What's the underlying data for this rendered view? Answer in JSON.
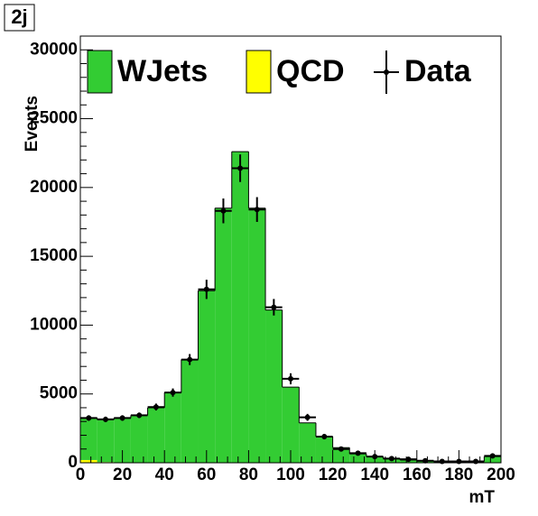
{
  "chart_data": {
    "type": "stacked_histogram",
    "title": "2j",
    "x_label": "mT",
    "y_label": "Events",
    "bins": [
      0,
      8,
      16,
      24,
      32,
      40,
      48,
      56,
      64,
      72,
      80,
      88,
      96,
      104,
      112,
      120,
      128,
      136,
      144,
      152,
      160,
      168,
      176,
      184,
      192,
      200
    ],
    "series": [
      {
        "name": "QCD",
        "color": "#ffff00",
        "values": [
          200,
          50,
          0,
          0,
          0,
          0,
          0,
          0,
          0,
          0,
          0,
          0,
          0,
          0,
          0,
          0,
          0,
          0,
          0,
          0,
          0,
          0,
          0,
          0,
          0
        ]
      },
      {
        "name": "WJets",
        "color": "#33cc33",
        "values": [
          3050,
          3100,
          3250,
          3450,
          4000,
          5100,
          7500,
          12500,
          18500,
          22600,
          18500,
          11100,
          5500,
          2900,
          1900,
          1100,
          650,
          450,
          300,
          200,
          150,
          100,
          100,
          100,
          450
        ]
      }
    ],
    "data": {
      "name": "Data",
      "color": "#000000",
      "values": [
        3250,
        3150,
        3250,
        3450,
        4050,
        5100,
        7500,
        12600,
        18300,
        21400,
        18400,
        11300,
        6100,
        3300,
        1900,
        1000,
        700,
        450,
        300,
        250,
        150,
        100,
        100,
        100,
        500
      ],
      "errors": [
        200,
        200,
        200,
        200,
        250,
        300,
        400,
        700,
        900,
        1000,
        900,
        600,
        400,
        250,
        200,
        150,
        100,
        80,
        60,
        60,
        50,
        40,
        40,
        40,
        80
      ]
    },
    "xlim": [
      0,
      200
    ],
    "xticks": [
      0,
      20,
      40,
      60,
      80,
      100,
      120,
      140,
      160,
      180,
      200
    ],
    "ylim": [
      0,
      31000
    ],
    "yticks": [
      0,
      5000,
      10000,
      15000,
      20000,
      25000,
      30000
    ],
    "legend": "top"
  }
}
